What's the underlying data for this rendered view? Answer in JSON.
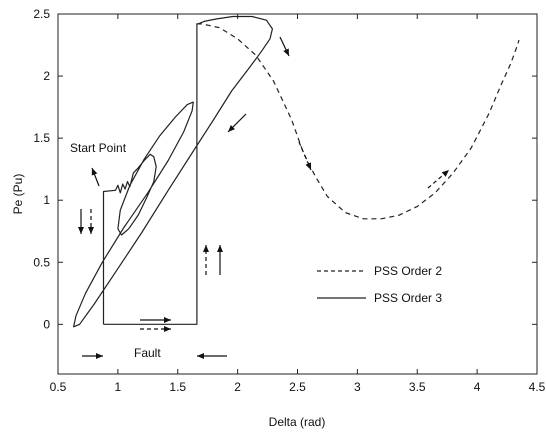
{
  "chart_data": {
    "type": "line",
    "title": "",
    "xlabel": "Delta (rad)",
    "ylabel": "Pe (Pu)",
    "xlim": [
      0.5,
      4.5
    ],
    "ylim": [
      -0.4,
      2.5
    ],
    "xticks": [
      "0.5",
      "1",
      "1.5",
      "2",
      "2.5",
      "3",
      "3.5",
      "4",
      "4.5"
    ],
    "yticks": [
      "0",
      "0.5",
      "1",
      "1.5",
      "2",
      "2.5"
    ],
    "grid": false,
    "legend_position": "right-middle",
    "series": [
      {
        "name": "PSS Order 2",
        "style": "dashed",
        "color": "#222222",
        "x": [
          1.66,
          1.7,
          1.85,
          2.0,
          2.15,
          2.3,
          2.45,
          2.55,
          2.65,
          2.75,
          2.9,
          3.05,
          3.2,
          3.35,
          3.5,
          3.65,
          3.8,
          3.95,
          4.1,
          4.2,
          4.28,
          4.33,
          4.35
        ],
        "y": [
          2.42,
          2.42,
          2.39,
          2.3,
          2.17,
          1.96,
          1.65,
          1.38,
          1.19,
          1.03,
          0.9,
          0.85,
          0.85,
          0.88,
          0.95,
          1.06,
          1.22,
          1.42,
          1.7,
          1.93,
          2.1,
          2.23,
          2.29
        ]
      },
      {
        "name": "PSS Order 3",
        "style": "solid",
        "color": "#222222",
        "x": [
          0.88,
          0.88,
          0.98,
          1.0,
          1.02,
          1.04,
          1.06,
          1.08,
          1.1,
          1.13,
          1.17,
          1.22,
          1.27,
          1.3,
          1.32,
          1.3,
          1.24,
          1.17,
          1.09,
          1.03,
          1.0,
          1.02,
          1.1,
          1.22,
          1.35,
          1.48,
          1.58,
          1.63,
          1.62,
          1.55,
          1.42,
          1.25,
          1.05,
          0.87,
          0.73,
          0.65,
          0.63,
          0.68,
          0.8,
          0.98,
          1.2,
          1.42,
          1.62,
          1.8,
          1.95,
          2.1,
          2.2,
          2.27,
          2.29,
          2.24,
          2.12,
          1.96,
          1.82,
          1.72,
          1.67,
          1.66,
          1.66,
          0.88,
          0.88
        ],
        "y": [
          0.0,
          1.07,
          1.08,
          1.12,
          1.06,
          1.13,
          1.09,
          1.15,
          1.11,
          1.22,
          1.26,
          1.32,
          1.37,
          1.35,
          1.27,
          1.15,
          1.02,
          0.88,
          0.77,
          0.72,
          0.77,
          0.92,
          1.12,
          1.33,
          1.52,
          1.67,
          1.77,
          1.79,
          1.72,
          1.55,
          1.32,
          1.06,
          0.78,
          0.5,
          0.25,
          0.07,
          -0.02,
          0.0,
          0.16,
          0.42,
          0.74,
          1.08,
          1.38,
          1.65,
          1.88,
          2.07,
          2.2,
          2.3,
          2.38,
          2.45,
          2.48,
          2.48,
          2.46,
          2.44,
          2.42,
          2.42,
          0.0,
          0.0,
          0.0
        ]
      }
    ],
    "annotations": {
      "start_point": "Start Point",
      "fault": "Fault"
    }
  }
}
